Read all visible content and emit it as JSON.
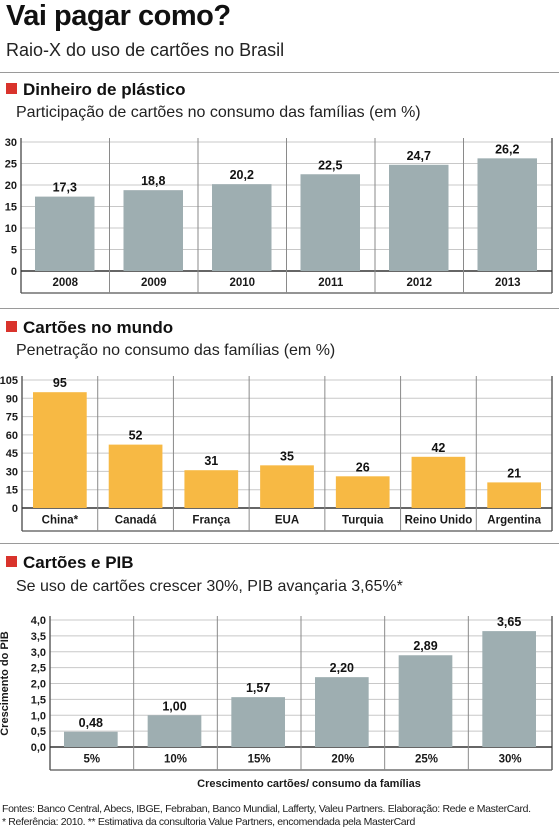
{
  "header": {
    "title": "Vai pagar como?",
    "subtitle": "Raio-X do uso de cartões no Brasil"
  },
  "colors": {
    "gray_bar": "#9eaeb1",
    "yellow_bar": "#f7b944",
    "marker_red": "#d9332c"
  },
  "footer": {
    "line1": "Fontes: Banco Central, Abecs, IBGE, Febraban, Banco Mundial, Lafferty, Valeu Partners. Elaboração: Rede e MasterCard.",
    "line2": "* Referência: 2010. ** Estimativa da consultoria Value Partners, encomendada pela MasterCard"
  },
  "chart_data": [
    {
      "type": "bar",
      "title": "Dinheiro de plástico",
      "subtitle": "Participação de cartões no consumo das famílias (em %)",
      "categories": [
        "2008",
        "2009",
        "2010",
        "2011",
        "2012",
        "2013"
      ],
      "values": [
        17.3,
        18.8,
        20.2,
        22.5,
        24.7,
        26.2
      ],
      "value_labels": [
        "17,3",
        "18,8",
        "20,2",
        "22,5",
        "24,7",
        "26,2"
      ],
      "yticks": [
        "0",
        "5",
        "10",
        "15",
        "20",
        "25",
        "30"
      ],
      "ylim": [
        0,
        30
      ],
      "color": "#9eaeb1",
      "xlabel": "",
      "ylabel": ""
    },
    {
      "type": "bar",
      "title": "Cartões no mundo",
      "subtitle": "Penetração no consumo das famílias (em %)",
      "categories": [
        "China*",
        "Canadá",
        "França",
        "EUA",
        "Turquia",
        "Reino Unido",
        "Argentina"
      ],
      "values": [
        95,
        52,
        31,
        35,
        26,
        42,
        21
      ],
      "value_labels": [
        "95",
        "52",
        "31",
        "35",
        "26",
        "42",
        "21"
      ],
      "yticks": [
        "0",
        "15",
        "30",
        "45",
        "60",
        "75",
        "90",
        "105"
      ],
      "ylim": [
        0,
        105
      ],
      "color": "#f7b944",
      "xlabel": "",
      "ylabel": ""
    },
    {
      "type": "bar",
      "title": "Cartões e PIB",
      "subtitle": "Se uso de cartões crescer 30%, PIB avançaria 3,65%*",
      "categories": [
        "5%",
        "10%",
        "15%",
        "20%",
        "25%",
        "30%"
      ],
      "values": [
        0.48,
        1.0,
        1.57,
        2.2,
        2.89,
        3.65
      ],
      "value_labels": [
        "0,48",
        "1,00",
        "1,57",
        "2,20",
        "2,89",
        "3,65"
      ],
      "yticks": [
        "0,0",
        "0,5",
        "1,0",
        "1,5",
        "2,0",
        "2,5",
        "3,0",
        "3,5",
        "4,0"
      ],
      "ylim": [
        0,
        4
      ],
      "color": "#9eaeb1",
      "xlabel": "Crescimento cartões/ consumo da famílias",
      "ylabel": "Crescimento do PIB"
    }
  ]
}
